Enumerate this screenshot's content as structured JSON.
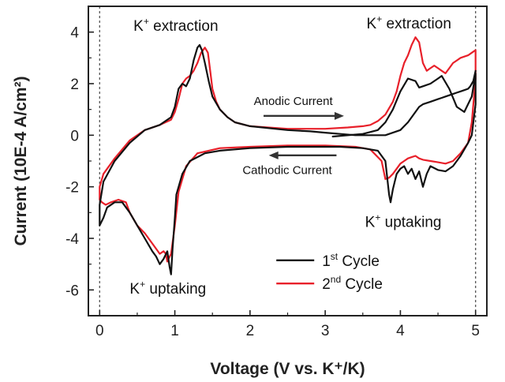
{
  "chart_data": {
    "type": "line",
    "xlabel": "Voltage (V vs. K⁺/K)",
    "ylabel": "Current (10E-4 A/cm²)",
    "xlim": [
      -0.15,
      5.15
    ],
    "ylim": [
      -7.0,
      5.0
    ],
    "x_ticks": [
      0,
      1,
      2,
      3,
      4,
      5
    ],
    "y_ticks": [
      -6,
      -4,
      -2,
      0,
      2,
      4
    ],
    "grid": false,
    "legend_position": "bottom-center",
    "reference_lines_x": [
      0,
      5
    ],
    "series": [
      {
        "name_main": "1",
        "name_sup": "st",
        "name_rest": " Cycle",
        "color": "#111111",
        "x": [
          3.1,
          3.5,
          3.7,
          3.8,
          3.9,
          4.0,
          4.1,
          4.2,
          4.25,
          4.3,
          4.4,
          4.5,
          4.55,
          4.65,
          4.75,
          4.85,
          4.95,
          5.0,
          5.0,
          4.95,
          4.9,
          4.8,
          4.7,
          4.6,
          4.5,
          4.4,
          4.35,
          4.3,
          4.25,
          4.2,
          4.15,
          4.1,
          4.05,
          4.0,
          3.95,
          3.9,
          3.87,
          3.85,
          3.8,
          3.7,
          3.5,
          3.2,
          3.0,
          2.5,
          2.0,
          1.6,
          1.4,
          1.2,
          1.1,
          1.02,
          1.0,
          0.97,
          0.95,
          0.93,
          0.9,
          0.85,
          0.8,
          0.75,
          0.7,
          0.6,
          0.5,
          0.4,
          0.3,
          0.2,
          0.1,
          0.05,
          0.0,
          0.0,
          0.05,
          0.2,
          0.4,
          0.6,
          0.8,
          0.95,
          1.0,
          1.05,
          1.1,
          1.15,
          1.2,
          1.25,
          1.3,
          1.33,
          1.36,
          1.4,
          1.45,
          1.5,
          1.6,
          1.7,
          1.8,
          2.0,
          2.5,
          2.8,
          3.0,
          3.2,
          3.4,
          3.5,
          3.6,
          3.7,
          3.8,
          3.9,
          4.0,
          4.05,
          4.1,
          4.15,
          4.2,
          4.25,
          4.3,
          4.4,
          4.5,
          4.55,
          4.6,
          4.65,
          4.7,
          4.75,
          4.8,
          4.85,
          4.9,
          4.93,
          4.97,
          5.0
        ],
        "y": [
          -0.05,
          0.05,
          0.2,
          0.5,
          1.0,
          1.7,
          2.2,
          2.1,
          1.85,
          1.9,
          2.0,
          2.2,
          2.3,
          1.8,
          1.1,
          0.9,
          1.5,
          2.4,
          1.2,
          0.0,
          -0.3,
          -0.8,
          -1.2,
          -1.4,
          -1.35,
          -1.2,
          -1.5,
          -2.0,
          -1.4,
          -1.7,
          -1.3,
          -1.5,
          -1.2,
          -1.3,
          -1.5,
          -2.1,
          -2.6,
          -2.3,
          -1.0,
          -0.6,
          -0.5,
          -0.45,
          -0.45,
          -0.45,
          -0.5,
          -0.6,
          -0.7,
          -1.0,
          -1.5,
          -2.3,
          -3.2,
          -4.4,
          -5.4,
          -5.1,
          -4.5,
          -4.8,
          -5.0,
          -4.7,
          -4.5,
          -4.0,
          -3.5,
          -3.0,
          -2.6,
          -2.6,
          -2.8,
          -3.2,
          -3.5,
          -2.7,
          -1.8,
          -1.0,
          -0.3,
          0.2,
          0.4,
          0.7,
          1.1,
          1.8,
          2.0,
          1.9,
          2.2,
          2.9,
          3.4,
          3.5,
          3.3,
          2.8,
          2.1,
          1.5,
          1.0,
          0.7,
          0.5,
          0.35,
          0.2,
          0.15,
          0.1,
          0.05,
          0.0,
          0.0,
          0.0,
          0.0,
          0.0,
          0.1,
          0.2,
          0.35,
          0.5,
          0.7,
          0.9,
          1.1,
          1.2,
          1.3,
          1.4,
          1.45,
          1.5,
          1.55,
          1.6,
          1.65,
          1.7,
          1.75,
          1.8,
          1.9,
          2.1,
          2.5
        ]
      },
      {
        "name_main": "2",
        "name_sup": "nd",
        "name_rest": " Cycle",
        "color": "#e8202a",
        "x": [
          5.0,
          4.95,
          4.9,
          4.8,
          4.7,
          4.6,
          4.5,
          4.4,
          4.3,
          4.25,
          4.2,
          4.15,
          4.1,
          4.05,
          4.0,
          3.95,
          3.9,
          3.85,
          3.8,
          3.75,
          3.6,
          3.4,
          3.0,
          2.5,
          2.0,
          1.6,
          1.3,
          1.15,
          1.05,
          1.0,
          0.95,
          0.9,
          0.88,
          0.85,
          0.8,
          0.75,
          0.7,
          0.6,
          0.5,
          0.4,
          0.35,
          0.25,
          0.15,
          0.08,
          0.03,
          0.0,
          0.0,
          0.05,
          0.2,
          0.4,
          0.6,
          0.8,
          0.95,
          1.0,
          1.05,
          1.1,
          1.15,
          1.2,
          1.25,
          1.3,
          1.35,
          1.4,
          1.44,
          1.47,
          1.5,
          1.55,
          1.6,
          1.7,
          1.8,
          2.0,
          2.5,
          3.0,
          3.3,
          3.5,
          3.6,
          3.7,
          3.8,
          3.9,
          3.95,
          4.0,
          4.05,
          4.1,
          4.15,
          4.2,
          4.25,
          4.3,
          4.35,
          4.4,
          4.45,
          4.5,
          4.55,
          4.6,
          4.65,
          4.7,
          4.75,
          4.8,
          4.85,
          4.9,
          4.95,
          5.0,
          5.0
        ],
        "y": [
          2.2,
          0.5,
          -0.3,
          -0.7,
          -1.0,
          -1.1,
          -1.05,
          -1.0,
          -0.95,
          -0.9,
          -0.8,
          -0.85,
          -0.9,
          -1.0,
          -1.1,
          -1.3,
          -1.5,
          -1.65,
          -1.7,
          -1.0,
          -0.55,
          -0.45,
          -0.4,
          -0.4,
          -0.45,
          -0.5,
          -0.7,
          -1.2,
          -2.2,
          -3.5,
          -4.6,
          -4.9,
          -4.6,
          -4.5,
          -4.6,
          -4.4,
          -4.2,
          -3.8,
          -3.5,
          -3.0,
          -2.6,
          -2.5,
          -2.6,
          -2.7,
          -2.6,
          -2.5,
          -2.0,
          -1.5,
          -0.9,
          -0.2,
          0.2,
          0.4,
          0.6,
          0.9,
          1.4,
          2.0,
          2.2,
          2.3,
          2.5,
          2.8,
          3.2,
          3.4,
          3.2,
          2.5,
          1.8,
          1.3,
          1.0,
          0.7,
          0.5,
          0.35,
          0.25,
          0.25,
          0.3,
          0.35,
          0.4,
          0.55,
          0.8,
          1.3,
          1.7,
          2.3,
          2.8,
          3.1,
          3.5,
          3.8,
          3.6,
          2.8,
          2.5,
          2.6,
          2.7,
          2.6,
          2.5,
          2.4,
          2.6,
          2.8,
          2.9,
          3.0,
          3.05,
          3.1,
          3.2,
          3.3,
          2.2
        ]
      }
    ],
    "annotations": [
      {
        "id": "extraction-left",
        "main": "K",
        "sup": "+",
        "rest": " extraction",
        "x": 0.45,
        "y": 4.05
      },
      {
        "id": "extraction-right",
        "main": "K",
        "sup": "+",
        "rest": " extraction",
        "x": 3.55,
        "y": 4.15
      },
      {
        "id": "uptaking-right",
        "main": "K",
        "sup": "+",
        "rest": " uptaking",
        "x": 3.53,
        "y": -3.55
      },
      {
        "id": "uptaking-left",
        "main": "K",
        "sup": "+",
        "rest": " uptaking",
        "x": 0.4,
        "y": -6.15
      }
    ],
    "arrows": [
      {
        "id": "anodic",
        "label": "Anodic Current",
        "x_from": 2.18,
        "x_to": 3.25,
        "y": 0.75,
        "label_x": 2.05,
        "label_y": 1.18
      },
      {
        "id": "cathodic",
        "label": "Cathodic Current",
        "x_from": 3.15,
        "x_to": 2.25,
        "y": -0.78,
        "label_x": 1.9,
        "label_y": -1.5
      }
    ],
    "legend": {
      "x": 2.35,
      "y1": -4.85,
      "y2": -5.75
    }
  }
}
